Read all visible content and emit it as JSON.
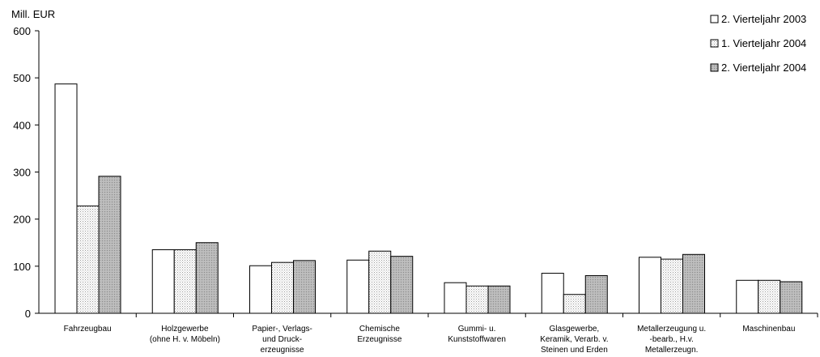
{
  "chart_data": {
    "type": "bar",
    "title": "",
    "ylabel": "Mill. EUR",
    "xlabel": "",
    "ylim": [
      0,
      600
    ],
    "yticks": [
      0,
      100,
      200,
      300,
      400,
      500,
      600
    ],
    "categories": [
      [
        "Fahrzeugbau"
      ],
      [
        "Holzgewerbe",
        "(ohne H. v. Möbeln)"
      ],
      [
        "Papier-, Verlags-",
        "und Druck-",
        "erzeugnisse"
      ],
      [
        "Chemische",
        "Erzeugnisse"
      ],
      [
        "Gummi- u.",
        "Kunststoffwaren"
      ],
      [
        "Glasgewerbe,",
        "Keramik, Verarb. v.",
        "Steinen und Erden"
      ],
      [
        "Metallerzeugung u.",
        "-bearb., H.v.",
        "Metallerzeugn."
      ],
      [
        "Maschinenbau"
      ]
    ],
    "series": [
      {
        "name": "2. Vierteljahr 2003",
        "fill": "white",
        "values": [
          487,
          135,
          101,
          113,
          65,
          85,
          119,
          70
        ]
      },
      {
        "name": "1. Vierteljahr 2004",
        "fill": "dotted",
        "values": [
          228,
          135,
          108,
          132,
          58,
          40,
          115,
          70
        ]
      },
      {
        "name": "2. Vierteljahr 2004",
        "fill": "gray",
        "values": [
          291,
          150,
          112,
          121,
          58,
          80,
          125,
          67
        ]
      }
    ],
    "legend_position": "top-right",
    "grid": false
  },
  "colors": {
    "axis": "#000000",
    "bar_outline": "#000000",
    "dotted_bg": "#ffffff",
    "dotted_dot": "#9a9a9a",
    "gray_fill": "#b8b8b8",
    "gray_dot": "#8c8c8c"
  }
}
